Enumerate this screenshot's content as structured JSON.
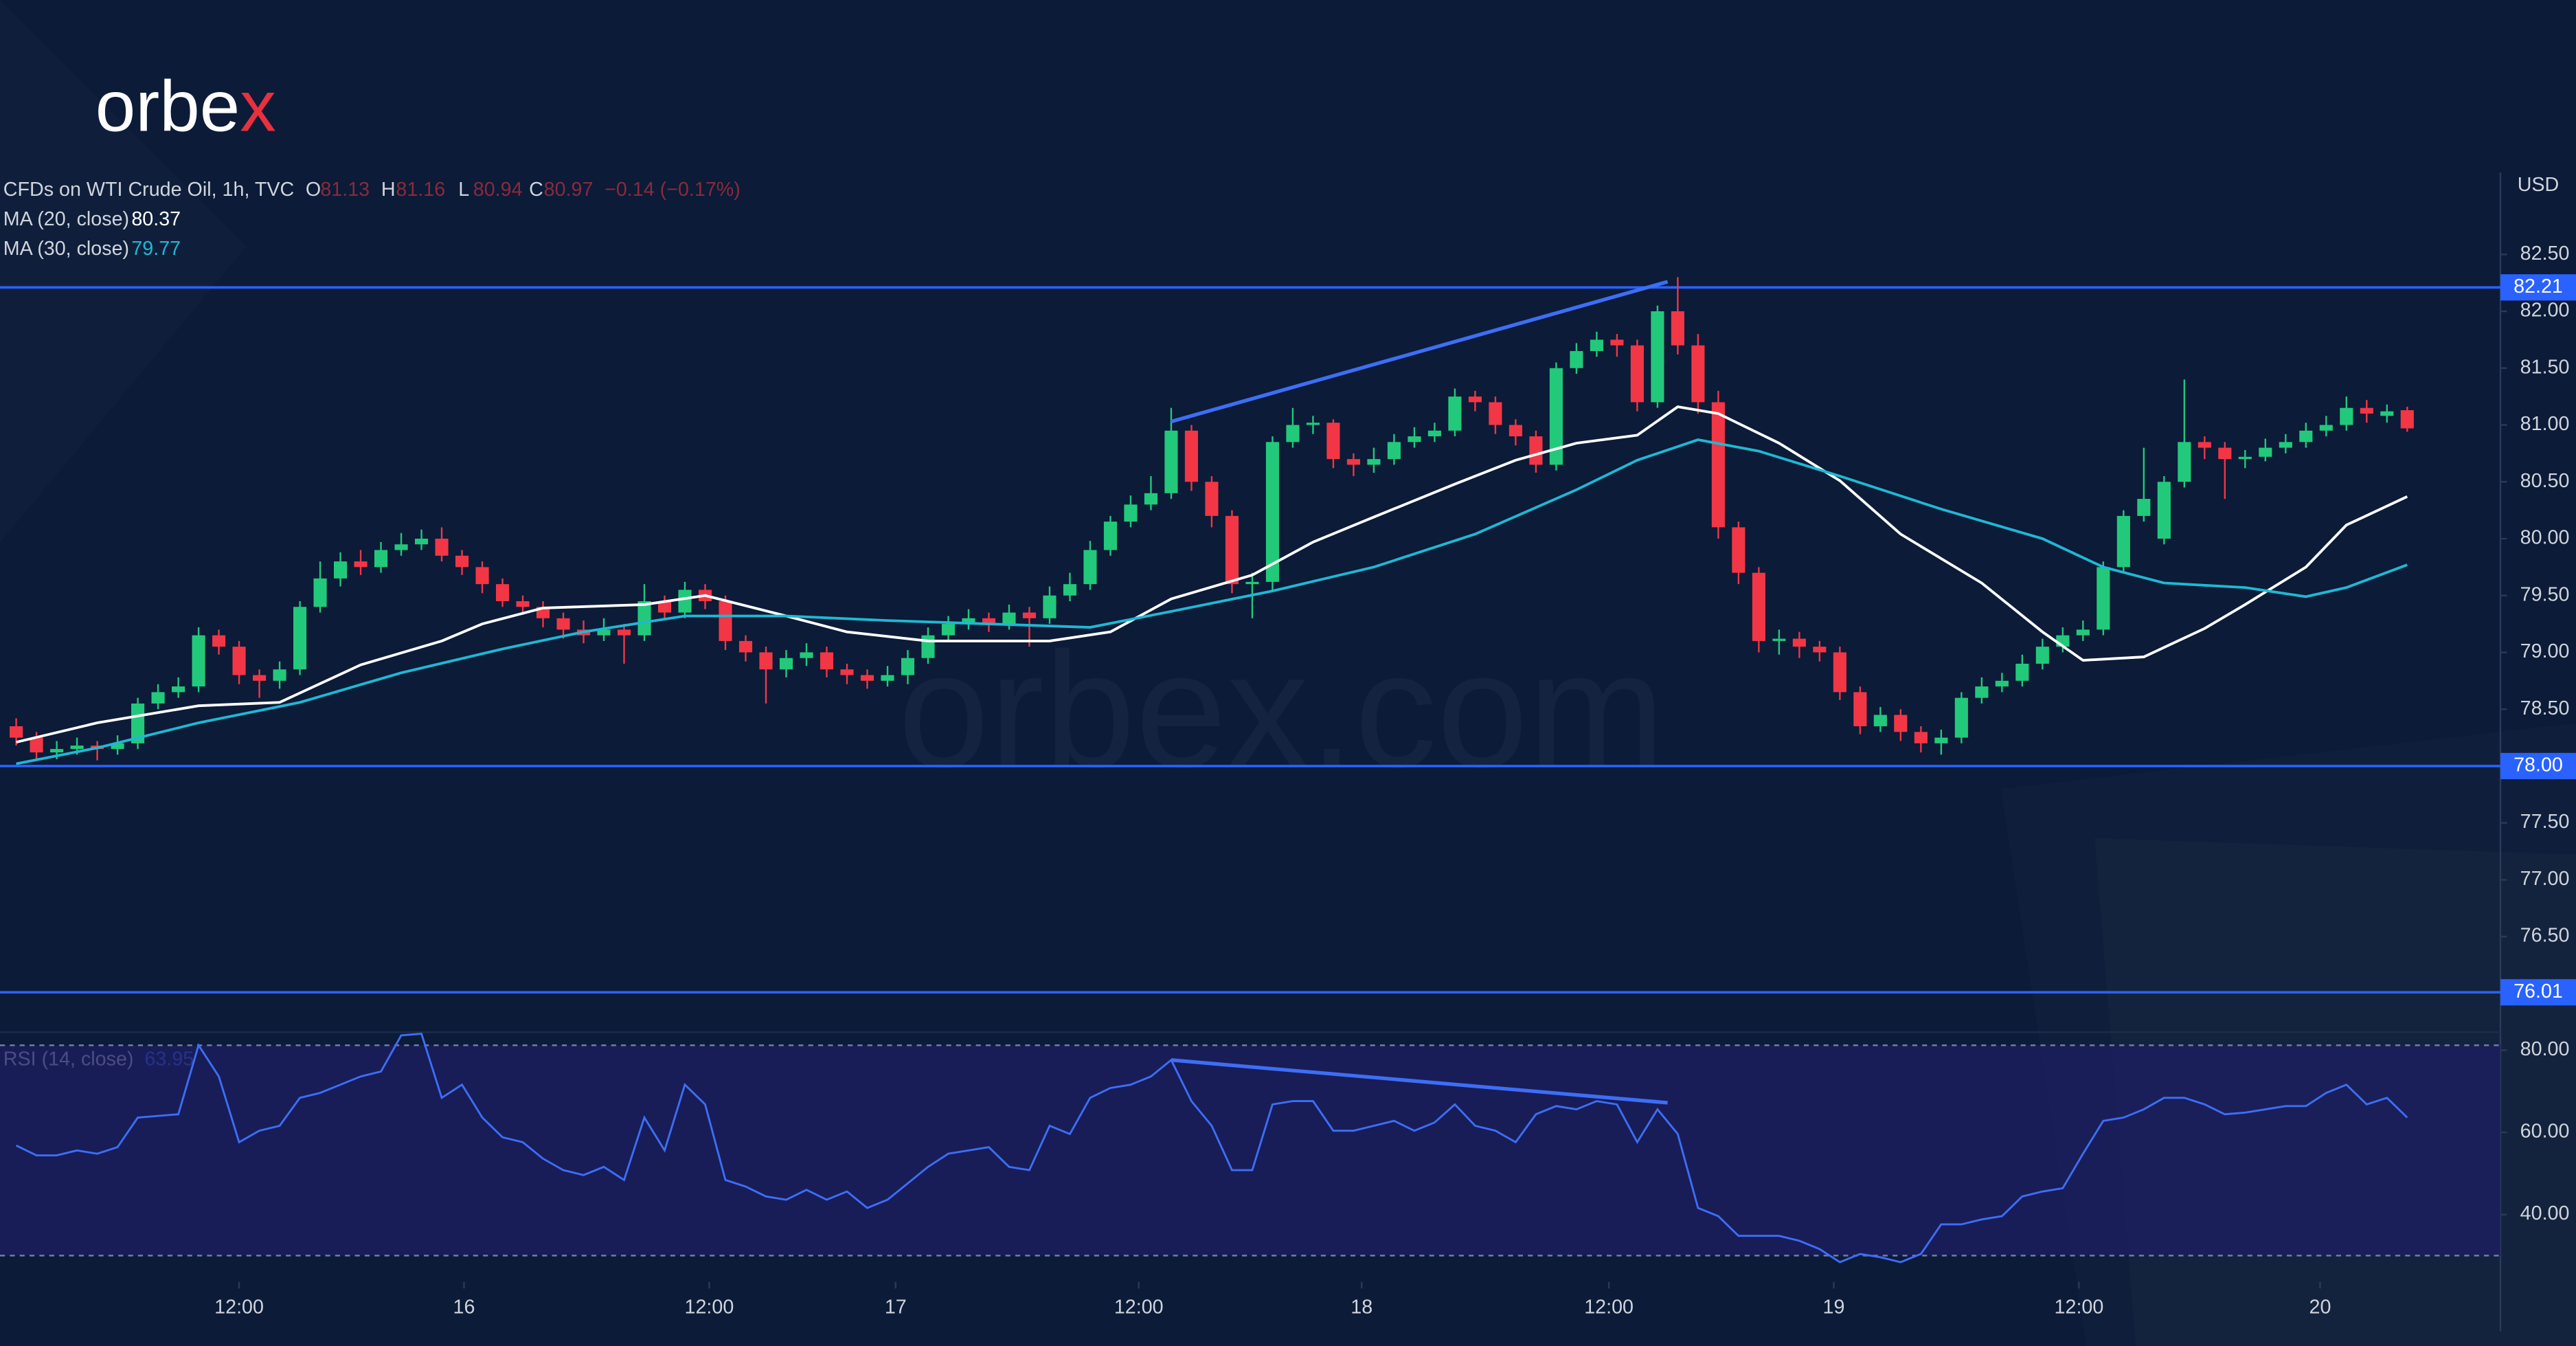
{
  "logo": {
    "text": "orbe",
    "accent": "x"
  },
  "watermark": "orbex.com",
  "chart_data": {
    "type": "candlestick",
    "title": "CFDs on WTI Crude Oil, 1h, TVC",
    "ohlc": [
      {
        "label": "O",
        "value": 81.13
      },
      {
        "label": "H",
        "value": 81.16
      },
      {
        "label": "L",
        "value": 80.94
      },
      {
        "label": "C",
        "value": 80.97
      }
    ],
    "change": "−0.14 (−0.17%)",
    "currency": "USD",
    "up_color": "#22c97a",
    "down_color": "#f23645",
    "grid": false,
    "xlim": [
      -0.8,
      122.6
    ],
    "xticks": [
      {
        "value": 11.0,
        "label": "12:00"
      },
      {
        "value": 22.1,
        "label": "16"
      },
      {
        "value": 34.2,
        "label": "12:00"
      },
      {
        "value": 43.4,
        "label": "17"
      },
      {
        "value": 55.4,
        "label": "12:00"
      },
      {
        "value": 66.4,
        "label": "18"
      },
      {
        "value": 78.6,
        "label": "12:00"
      },
      {
        "value": 89.7,
        "label": "19"
      },
      {
        "value": 101.8,
        "label": "12:00"
      },
      {
        "value": 113.7,
        "label": "20"
      }
    ],
    "ylim": [
      75.66,
      83.22
    ],
    "yticks": [
      {
        "value": 76.5,
        "label": "76.50"
      },
      {
        "value": 77,
        "label": "77.00"
      },
      {
        "value": 77.5,
        "label": "77.50"
      },
      {
        "value": 78,
        "label": "78.00"
      },
      {
        "value": 78.5,
        "label": "78.50"
      },
      {
        "value": 79,
        "label": "79.00"
      },
      {
        "value": 79.5,
        "label": "79.50"
      },
      {
        "value": 80,
        "label": "80.00"
      },
      {
        "value": 80.5,
        "label": "80.50"
      },
      {
        "value": 81,
        "label": "81.00"
      },
      {
        "value": 81.5,
        "label": "81.50"
      },
      {
        "value": 82,
        "label": "82.00"
      },
      {
        "value": 82.5,
        "label": "82.50"
      }
    ],
    "levels": [
      82.21,
      {
        "value": 78,
        "label": "78.00"
      },
      76.01
    ],
    "level_color": "#2962ff",
    "trendlines": [
      {
        "x": [
          57,
          81.5
        ],
        "values": [
          81.03,
          82.26
        ]
      }
    ],
    "trend_color": "#3d6ef5",
    "candles": [
      [
        78.35,
        78.42,
        78.18,
        78.25
      ],
      [
        78.25,
        78.3,
        78.05,
        78.12
      ],
      [
        78.12,
        78.22,
        78.06,
        78.15
      ],
      [
        78.15,
        78.25,
        78.1,
        78.18
      ],
      [
        78.18,
        78.22,
        78.05,
        78.15
      ],
      [
        78.15,
        78.27,
        78.1,
        78.2
      ],
      [
        78.2,
        78.6,
        78.15,
        78.55
      ],
      [
        78.55,
        78.72,
        78.5,
        78.65
      ],
      [
        78.65,
        78.78,
        78.6,
        78.7
      ],
      [
        78.7,
        79.22,
        78.65,
        79.15
      ],
      [
        79.15,
        79.2,
        78.98,
        79.05
      ],
      [
        79.05,
        79.1,
        78.72,
        78.8
      ],
      [
        78.8,
        78.85,
        78.6,
        78.75
      ],
      [
        78.75,
        78.92,
        78.68,
        78.85
      ],
      [
        78.85,
        79.45,
        78.8,
        79.4
      ],
      [
        79.4,
        79.8,
        79.35,
        79.65
      ],
      [
        79.65,
        79.88,
        79.58,
        79.8
      ],
      [
        79.8,
        79.9,
        79.68,
        79.75
      ],
      [
        79.75,
        79.97,
        79.7,
        79.9
      ],
      [
        79.9,
        80.05,
        79.85,
        79.95
      ],
      [
        79.95,
        80.08,
        79.9,
        80.0
      ],
      [
        80.0,
        80.1,
        79.8,
        79.85
      ],
      [
        79.85,
        79.9,
        79.68,
        79.75
      ],
      [
        79.75,
        79.8,
        79.52,
        79.6
      ],
      [
        79.6,
        79.65,
        79.4,
        79.45
      ],
      [
        79.45,
        79.5,
        79.33,
        79.4
      ],
      [
        79.4,
        79.45,
        79.22,
        79.3
      ],
      [
        79.3,
        79.35,
        79.12,
        79.2
      ],
      [
        79.2,
        79.28,
        79.08,
        79.15
      ],
      [
        79.15,
        79.3,
        79.1,
        79.2
      ],
      [
        79.2,
        79.25,
        78.9,
        79.15
      ],
      [
        79.15,
        79.6,
        79.1,
        79.45
      ],
      [
        79.45,
        79.5,
        79.28,
        79.35
      ],
      [
        79.35,
        79.62,
        79.3,
        79.55
      ],
      [
        79.55,
        79.6,
        79.38,
        79.45
      ],
      [
        79.45,
        79.5,
        79.02,
        79.1
      ],
      [
        79.1,
        79.15,
        78.92,
        79.0
      ],
      [
        79.0,
        79.05,
        78.55,
        78.85
      ],
      [
        78.85,
        79.02,
        78.78,
        78.95
      ],
      [
        78.95,
        79.08,
        78.88,
        79.0
      ],
      [
        79.0,
        79.05,
        78.78,
        78.85
      ],
      [
        78.85,
        78.9,
        78.72,
        78.8
      ],
      [
        78.8,
        78.85,
        78.68,
        78.75
      ],
      [
        78.75,
        78.88,
        78.7,
        78.8
      ],
      [
        78.8,
        79.02,
        78.72,
        78.95
      ],
      [
        78.95,
        79.22,
        78.9,
        79.15
      ],
      [
        79.15,
        79.32,
        79.1,
        79.25
      ],
      [
        79.25,
        79.38,
        79.2,
        79.3
      ],
      [
        79.3,
        79.35,
        79.18,
        79.25
      ],
      [
        79.25,
        79.42,
        79.2,
        79.35
      ],
      [
        79.35,
        79.4,
        79.05,
        79.3
      ],
      [
        79.3,
        79.58,
        79.25,
        79.5
      ],
      [
        79.5,
        79.7,
        79.45,
        79.6
      ],
      [
        79.6,
        79.98,
        79.55,
        79.9
      ],
      [
        79.9,
        80.2,
        79.85,
        80.15
      ],
      [
        80.15,
        80.38,
        80.1,
        80.3
      ],
      [
        80.3,
        80.55,
        80.25,
        80.4
      ],
      [
        80.4,
        81.15,
        80.35,
        80.95
      ],
      [
        80.95,
        81.0,
        80.42,
        80.5
      ],
      [
        80.5,
        80.55,
        80.1,
        80.2
      ],
      [
        80.2,
        80.25,
        79.52,
        79.6
      ],
      [
        79.6,
        79.7,
        79.3,
        79.62
      ],
      [
        79.62,
        80.9,
        79.55,
        80.85
      ],
      [
        80.85,
        81.15,
        80.8,
        81.0
      ],
      [
        81.0,
        81.08,
        80.92,
        81.02
      ],
      [
        81.02,
        81.05,
        80.62,
        80.7
      ],
      [
        80.7,
        80.75,
        80.55,
        80.65
      ],
      [
        80.65,
        80.8,
        80.58,
        80.7
      ],
      [
        80.7,
        80.92,
        80.65,
        80.85
      ],
      [
        80.85,
        80.98,
        80.8,
        80.9
      ],
      [
        80.9,
        81.02,
        80.85,
        80.95
      ],
      [
        80.95,
        81.32,
        80.9,
        81.25
      ],
      [
        81.25,
        81.3,
        81.12,
        81.2
      ],
      [
        81.2,
        81.25,
        80.92,
        81.0
      ],
      [
        81.0,
        81.05,
        80.82,
        80.9
      ],
      [
        80.9,
        80.95,
        80.58,
        80.65
      ],
      [
        80.65,
        81.55,
        80.6,
        81.5
      ],
      [
        81.5,
        81.72,
        81.45,
        81.65
      ],
      [
        81.65,
        81.82,
        81.6,
        81.75
      ],
      [
        81.75,
        81.8,
        81.6,
        81.7
      ],
      [
        81.7,
        81.75,
        81.12,
        81.2
      ],
      [
        81.2,
        82.05,
        81.15,
        82.0
      ],
      [
        82.0,
        82.3,
        81.62,
        81.7
      ],
      [
        81.7,
        81.8,
        81.1,
        81.2
      ],
      [
        81.2,
        81.3,
        80.0,
        80.1
      ],
      [
        80.1,
        80.15,
        79.6,
        79.7
      ],
      [
        79.7,
        79.75,
        79.0,
        79.1
      ],
      [
        79.1,
        79.2,
        78.98,
        79.12
      ],
      [
        79.12,
        79.18,
        78.95,
        79.05
      ],
      [
        79.05,
        79.1,
        78.92,
        79.0
      ],
      [
        79.0,
        79.05,
        78.58,
        78.65
      ],
      [
        78.65,
        78.7,
        78.28,
        78.35
      ],
      [
        78.35,
        78.52,
        78.3,
        78.45
      ],
      [
        78.45,
        78.5,
        78.22,
        78.3
      ],
      [
        78.3,
        78.35,
        78.12,
        78.2
      ],
      [
        78.2,
        78.32,
        78.1,
        78.25
      ],
      [
        78.25,
        78.65,
        78.2,
        78.6
      ],
      [
        78.6,
        78.78,
        78.55,
        78.7
      ],
      [
        78.7,
        78.82,
        78.65,
        78.75
      ],
      [
        78.75,
        78.98,
        78.7,
        78.9
      ],
      [
        78.9,
        79.12,
        78.85,
        79.05
      ],
      [
        79.05,
        79.22,
        79.0,
        79.15
      ],
      [
        79.15,
        79.28,
        79.1,
        79.2
      ],
      [
        79.2,
        79.8,
        79.15,
        79.75
      ],
      [
        79.75,
        80.25,
        79.7,
        80.2
      ],
      [
        80.2,
        80.8,
        80.15,
        80.35
      ],
      [
        80.0,
        80.55,
        79.95,
        80.5
      ],
      [
        80.5,
        81.4,
        80.45,
        80.85
      ],
      [
        80.85,
        80.9,
        80.7,
        80.8
      ],
      [
        80.8,
        80.85,
        80.35,
        80.7
      ],
      [
        80.7,
        80.78,
        80.62,
        80.72
      ],
      [
        80.72,
        80.88,
        80.68,
        80.8
      ],
      [
        80.8,
        80.92,
        80.75,
        80.85
      ],
      [
        80.85,
        81.02,
        80.8,
        80.95
      ],
      [
        80.95,
        81.08,
        80.9,
        81.0
      ],
      [
        81.0,
        81.25,
        80.95,
        81.15
      ],
      [
        81.15,
        81.22,
        81.02,
        81.1
      ],
      [
        81.08,
        81.18,
        81.02,
        81.12
      ],
      [
        81.13,
        81.16,
        80.94,
        80.97
      ]
    ],
    "series": [
      {
        "name": "MA (20, close)",
        "last": 80.37,
        "color": "#ffffff",
        "x": [
          0,
          4,
          9,
          13,
          17,
          21,
          23,
          26,
          31,
          34,
          38,
          41,
          45,
          51,
          54,
          57,
          61,
          64,
          67,
          71,
          74,
          77,
          80,
          82,
          84,
          87,
          90,
          93,
          97,
          100,
          102,
          105,
          108,
          110,
          113,
          115,
          118
        ],
        "values": [
          78.21,
          78.38,
          78.53,
          78.56,
          78.89,
          79.1,
          79.25,
          79.39,
          79.42,
          79.5,
          79.32,
          79.18,
          79.1,
          79.1,
          79.18,
          79.47,
          79.68,
          79.97,
          80.19,
          80.48,
          80.69,
          80.84,
          80.91,
          81.16,
          81.1,
          80.84,
          80.51,
          80.04,
          79.61,
          79.18,
          78.93,
          78.96,
          79.21,
          79.42,
          79.75,
          80.12,
          80.37
        ]
      },
      {
        "name": "MA (30, close)",
        "last": 79.77,
        "color": "#1fb8d3",
        "x": [
          0,
          4,
          9,
          14,
          19,
          24,
          28,
          33,
          38,
          43,
          48,
          53,
          57,
          62,
          67,
          72,
          77,
          80,
          83,
          86,
          90,
          95,
          100,
          103,
          106,
          110,
          113,
          115,
          118
        ],
        "values": [
          78.02,
          78.16,
          78.38,
          78.56,
          78.82,
          79.03,
          79.18,
          79.32,
          79.32,
          79.28,
          79.25,
          79.22,
          79.36,
          79.54,
          79.75,
          80.04,
          80.43,
          80.69,
          80.87,
          80.77,
          80.55,
          80.26,
          80.0,
          79.75,
          79.61,
          79.57,
          79.49,
          79.57,
          79.77
        ]
      }
    ],
    "rsi": {
      "name": "RSI (14, close)",
      "last": 63.95,
      "color": "#3d6ef5",
      "ylim": [
        23.6,
        84.4
      ],
      "band": [
        30,
        81.2
      ],
      "yticks": [
        {
          "value": 40,
          "label": "40.00"
        },
        {
          "value": 60,
          "label": "60.00"
        },
        {
          "value": 80,
          "label": "80.00"
        }
      ],
      "trendline": {
        "x": [
          57,
          81.5
        ],
        "values": [
          77.6,
          67.2
        ]
      },
      "values": [
        56.8,
        54.4,
        54.4,
        55.6,
        54.8,
        56.4,
        63.6,
        64,
        64.4,
        81.2,
        73.6,
        57.6,
        60.4,
        61.6,
        68.4,
        69.6,
        71.6,
        73.6,
        74.8,
        83.6,
        84.0,
        68.4,
        71.6,
        63.6,
        58.8,
        57.6,
        53.6,
        50.8,
        49.6,
        51.6,
        48.4,
        63.6,
        55.6,
        71.6,
        66.8,
        48.4,
        46.8,
        44.4,
        43.6,
        46,
        43.6,
        45.6,
        41.6,
        43.6,
        47.6,
        51.6,
        54.8,
        55.6,
        56.4,
        51.6,
        50.8,
        61.6,
        59.6,
        68.4,
        70.8,
        71.6,
        73.6,
        77.6,
        67.6,
        61.6,
        50.8,
        50.8,
        66.8,
        67.6,
        67.6,
        60.4,
        60.4,
        61.6,
        62.8,
        60.4,
        62.4,
        66.8,
        61.6,
        60.4,
        57.6,
        64.4,
        66.4,
        65.6,
        67.6,
        66.8,
        57.6,
        65.6,
        59.6,
        41.6,
        39.6,
        34.8,
        34.8,
        34.8,
        33.6,
        31.6,
        28.4,
        30.4,
        29.6,
        28.4,
        30.4,
        37.6,
        37.6,
        38.8,
        39.6,
        44.4,
        45.6,
        46.4,
        54.8,
        62.8,
        63.6,
        65.6,
        68.4,
        68.4,
        66.8,
        64.4,
        64.8,
        65.6,
        66.4,
        66.4,
        69.6,
        71.6,
        66.8,
        68.4,
        63.6
      ]
    }
  }
}
